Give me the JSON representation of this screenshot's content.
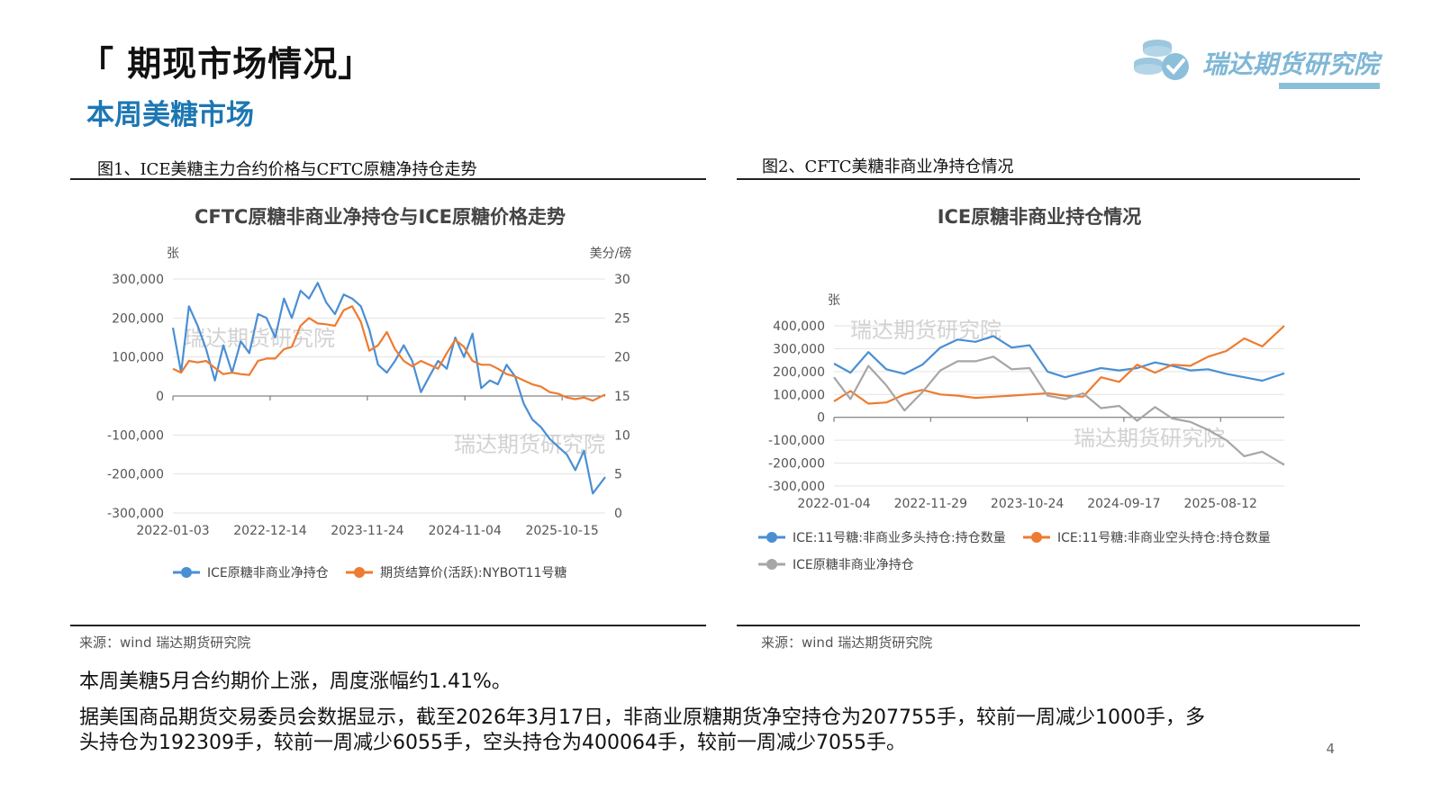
{
  "header": {
    "title": "「 期现市场情况」",
    "subtitle": "本周美糖市场",
    "logo_text": "瑞达期货研究院"
  },
  "figures": [
    {
      "caption": "图1、ICE美糖主力合约价格与CFTC原糖净持仓走势",
      "source": "来源：wind    瑞达期货研究院"
    },
    {
      "caption": "图2、CFTC美糖非商业净持仓情况",
      "source": "来源：wind    瑞达期货研究院"
    }
  ],
  "watermark": "瑞达期货研究院",
  "colors": {
    "blue": "#4a8fd4",
    "orange": "#ee7b30",
    "gray": "#a6a6a6",
    "accent": "#1d77b3"
  },
  "chart_data": [
    {
      "type": "line",
      "title": "CFTC原糖非商业净持仓与ICE原糖价格走势",
      "ylabel": "张",
      "y2label": "美分/磅",
      "ylim": [
        -300000,
        300000
      ],
      "y2lim": [
        0,
        30
      ],
      "yticks": [
        "300,000",
        "200,000",
        "100,000",
        "0",
        "-100,000",
        "-200,000",
        "-300,000"
      ],
      "y2ticks": [
        "30",
        "25",
        "20",
        "15",
        "10",
        "5",
        "0"
      ],
      "xticks": [
        "2022-01-03",
        "2022-12-14",
        "2023-11-24",
        "2024-11-04",
        "2025-10-15"
      ],
      "x_range": [
        "2022-01-03",
        "2026-03-17"
      ],
      "legend_position": "bottom",
      "series": [
        {
          "name": "ICE原糖非商业净持仓",
          "axis": "left",
          "color": "#4a8fd4",
          "x": [
            "2022-01-03",
            "2022-02-01",
            "2022-03-01",
            "2022-04-01",
            "2022-05-01",
            "2022-06-01",
            "2022-07-01",
            "2022-08-01",
            "2022-09-01",
            "2022-10-01",
            "2022-11-01",
            "2022-12-01",
            "2023-01-01",
            "2023-02-01",
            "2023-03-01",
            "2023-04-01",
            "2023-05-01",
            "2023-06-01",
            "2023-07-01",
            "2023-08-01",
            "2023-09-01",
            "2023-10-01",
            "2023-11-01",
            "2023-12-01",
            "2024-01-01",
            "2024-02-01",
            "2024-03-01",
            "2024-04-01",
            "2024-05-01",
            "2024-06-01",
            "2024-07-01",
            "2024-08-01",
            "2024-09-01",
            "2024-10-01",
            "2024-11-01",
            "2024-12-01",
            "2025-01-01",
            "2025-02-01",
            "2025-03-01",
            "2025-04-01",
            "2025-05-01",
            "2025-06-01",
            "2025-07-01",
            "2025-08-01",
            "2025-09-01",
            "2025-10-01",
            "2025-11-01",
            "2025-12-01",
            "2026-01-01",
            "2026-02-01",
            "2026-03-17"
          ],
          "values": [
            175000,
            60000,
            230000,
            180000,
            120000,
            40000,
            130000,
            60000,
            140000,
            110000,
            210000,
            200000,
            150000,
            250000,
            200000,
            270000,
            250000,
            290000,
            240000,
            210000,
            260000,
            250000,
            230000,
            170000,
            80000,
            60000,
            90000,
            130000,
            90000,
            10000,
            50000,
            90000,
            70000,
            150000,
            100000,
            160000,
            20000,
            40000,
            30000,
            80000,
            50000,
            -20000,
            -60000,
            -80000,
            -110000,
            -130000,
            -150000,
            -190000,
            -140000,
            -250000,
            -208000
          ]
        },
        {
          "name": "期货结算价(活跃):NYBOT11号糖",
          "axis": "right",
          "color": "#ee7b30",
          "x": [
            "2022-01-03",
            "2022-02-01",
            "2022-03-01",
            "2022-04-01",
            "2022-05-01",
            "2022-06-01",
            "2022-07-01",
            "2022-08-01",
            "2022-09-01",
            "2022-10-01",
            "2022-11-01",
            "2022-12-01",
            "2023-01-01",
            "2023-02-01",
            "2023-03-01",
            "2023-04-01",
            "2023-05-01",
            "2023-06-01",
            "2023-07-01",
            "2023-08-01",
            "2023-09-01",
            "2023-10-01",
            "2023-11-01",
            "2023-12-01",
            "2024-01-01",
            "2024-02-01",
            "2024-03-01",
            "2024-04-01",
            "2024-05-01",
            "2024-06-01",
            "2024-07-01",
            "2024-08-01",
            "2024-09-01",
            "2024-10-01",
            "2024-11-01",
            "2024-12-01",
            "2025-01-01",
            "2025-02-01",
            "2025-03-01",
            "2025-04-01",
            "2025-05-01",
            "2025-06-01",
            "2025-07-01",
            "2025-08-01",
            "2025-09-01",
            "2025-10-01",
            "2025-11-01",
            "2025-12-01",
            "2026-01-01",
            "2026-02-01",
            "2026-03-17"
          ],
          "values": [
            18.5,
            18,
            19.5,
            19.3,
            19.5,
            18.6,
            17.8,
            18,
            17.8,
            17.7,
            19.5,
            19.8,
            19.8,
            21,
            21.3,
            24,
            25,
            24.3,
            24.2,
            24,
            26,
            26.5,
            24.5,
            20.8,
            21.5,
            23.2,
            21,
            19.5,
            18.8,
            19.5,
            19,
            18.5,
            20.5,
            22.2,
            21.3,
            19.5,
            19,
            19,
            18.5,
            17.8,
            17.5,
            17,
            16.5,
            16.2,
            15.5,
            15.3,
            14.8,
            14.6,
            14.8,
            14.4,
            15.2
          ]
        }
      ]
    },
    {
      "type": "line",
      "title": "ICE原糖非商业持仓情况",
      "ylabel": "张",
      "ylim": [
        -300000,
        400000
      ],
      "yticks": [
        "400,000",
        "300,000",
        "200,000",
        "100,000",
        "0",
        "-100,000",
        "-200,000",
        "-300,000"
      ],
      "xticks": [
        "2022-01-04",
        "2022-11-29",
        "2023-10-24",
        "2024-09-17",
        "2025-08-12"
      ],
      "x_range": [
        "2022-01-04",
        "2026-03-17"
      ],
      "legend_position": "bottom",
      "series": [
        {
          "name": "ICE:11号糖:非商业多头持仓:持仓数量",
          "color": "#4a8fd4",
          "x": [
            "2022-01-04",
            "2022-03-01",
            "2022-05-01",
            "2022-07-01",
            "2022-09-01",
            "2022-11-01",
            "2023-01-01",
            "2023-03-01",
            "2023-05-01",
            "2023-07-01",
            "2023-09-01",
            "2023-11-01",
            "2024-01-01",
            "2024-03-01",
            "2024-05-01",
            "2024-07-01",
            "2024-09-01",
            "2024-11-01",
            "2025-01-01",
            "2025-03-01",
            "2025-05-01",
            "2025-07-01",
            "2025-09-01",
            "2025-11-01",
            "2026-01-01",
            "2026-03-17"
          ],
          "values": [
            235000,
            195000,
            285000,
            210000,
            190000,
            230000,
            305000,
            340000,
            330000,
            355000,
            305000,
            315000,
            200000,
            175000,
            195000,
            215000,
            205000,
            215000,
            240000,
            225000,
            205000,
            210000,
            190000,
            175000,
            160000,
            192309
          ]
        },
        {
          "name": "ICE:11号糖:非商业空头持仓:持仓数量",
          "color": "#ee7b30",
          "x": [
            "2022-01-04",
            "2022-03-01",
            "2022-05-01",
            "2022-07-01",
            "2022-09-01",
            "2022-11-01",
            "2023-01-01",
            "2023-03-01",
            "2023-05-01",
            "2023-07-01",
            "2023-09-01",
            "2023-11-01",
            "2024-01-01",
            "2024-03-01",
            "2024-05-01",
            "2024-07-01",
            "2024-09-01",
            "2024-11-01",
            "2025-01-01",
            "2025-03-01",
            "2025-05-01",
            "2025-07-01",
            "2025-09-01",
            "2025-11-01",
            "2026-01-01",
            "2026-03-17"
          ],
          "values": [
            70000,
            115000,
            60000,
            65000,
            100000,
            120000,
            100000,
            95000,
            85000,
            90000,
            95000,
            100000,
            105000,
            95000,
            90000,
            175000,
            155000,
            230000,
            195000,
            230000,
            225000,
            265000,
            290000,
            345000,
            310000,
            400064
          ]
        },
        {
          "name": "ICE原糖非商业净持仓",
          "color": "#a6a6a6",
          "x": [
            "2022-01-04",
            "2022-03-01",
            "2022-05-01",
            "2022-07-01",
            "2022-09-01",
            "2022-11-01",
            "2023-01-01",
            "2023-03-01",
            "2023-05-01",
            "2023-07-01",
            "2023-09-01",
            "2023-11-01",
            "2024-01-01",
            "2024-03-01",
            "2024-05-01",
            "2024-07-01",
            "2024-09-01",
            "2024-11-01",
            "2025-01-01",
            "2025-03-01",
            "2025-05-01",
            "2025-07-01",
            "2025-09-01",
            "2025-11-01",
            "2026-01-01",
            "2026-03-17"
          ],
          "values": [
            175000,
            80000,
            225000,
            140000,
            30000,
            110000,
            205000,
            245000,
            245000,
            265000,
            210000,
            215000,
            95000,
            80000,
            105000,
            40000,
            50000,
            -15000,
            45000,
            -5000,
            -20000,
            -55000,
            -100000,
            -170000,
            -150000,
            -207755
          ]
        }
      ]
    }
  ],
  "paragraphs": [
    "本周美糖5月合约期价上涨，周度涨幅约1.41%。",
    "据美国商品期货交易委员会数据显示，截至2026年3月17日，非商业原糖期货净空持仓为207755手，较前一周减少1000手，多",
    "头持仓为192309手，较前一周减少6055手，空头持仓为400064手，较前一周减少7055手。"
  ],
  "page_number": "4"
}
